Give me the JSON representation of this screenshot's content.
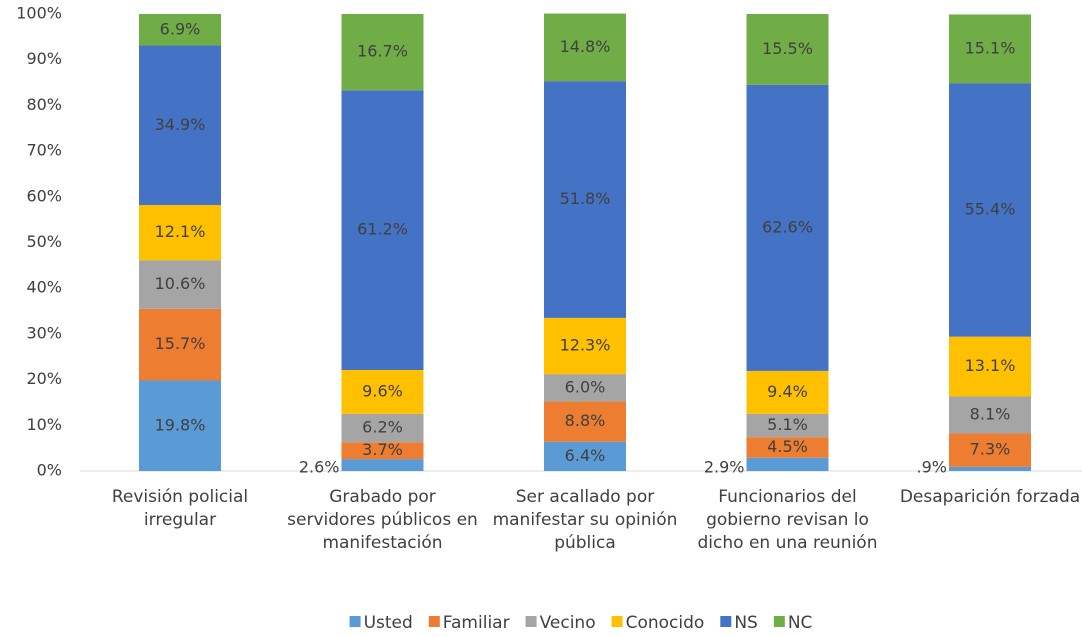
{
  "chart_data": {
    "type": "stacked_bar",
    "categories": [
      "Revisión policial irregular",
      "Grabado por servidores públicos en manifestación",
      "Ser acallado por manifestar su opinión pública",
      "Funcionarios del gobierno revisan lo dicho en una reunión",
      "Desaparición forzada"
    ],
    "series": [
      {
        "name": "Usted",
        "color": "#5b9bd5",
        "values": [
          19.8,
          2.6,
          6.4,
          2.9,
          0.9
        ],
        "value_labels": [
          "19.8%",
          "2.6%",
          "6.4%",
          "2.9%",
          ".9%"
        ]
      },
      {
        "name": "Familiar",
        "color": "#ed7d31",
        "values": [
          15.7,
          3.7,
          8.8,
          4.5,
          7.3
        ],
        "value_labels": [
          "15.7%",
          "3.7%",
          "8.8%",
          "4.5%",
          "7.3%"
        ]
      },
      {
        "name": "Vecino",
        "color": "#a5a5a5",
        "values": [
          10.6,
          6.2,
          6.0,
          5.1,
          8.1
        ],
        "value_labels": [
          "10.6%",
          "6.2%",
          "6.0%",
          "5.1%",
          "8.1%"
        ]
      },
      {
        "name": "Conocido",
        "color": "#ffc000",
        "values": [
          12.1,
          9.6,
          12.3,
          9.4,
          13.1
        ],
        "value_labels": [
          "12.1%",
          "9.6%",
          "12.3%",
          "9.4%",
          "13.1%"
        ]
      },
      {
        "name": "NS",
        "color": "#4472c4",
        "values": [
          34.9,
          61.2,
          51.8,
          62.6,
          55.4
        ],
        "value_labels": [
          "34.9%",
          "61.2%",
          "51.8%",
          "62.6%",
          "55.4%"
        ]
      },
      {
        "name": "NC",
        "color": "#70ad47",
        "values": [
          6.9,
          16.7,
          14.8,
          15.5,
          15.1
        ],
        "value_labels": [
          "6.9%",
          "16.7%",
          "14.8%",
          "15.5%",
          "15.1%"
        ]
      }
    ],
    "ylim": [
      0,
      100
    ],
    "yticks": [
      {
        "value": 0,
        "label": "0%"
      },
      {
        "value": 10,
        "label": "10%"
      },
      {
        "value": 20,
        "label": "20%"
      },
      {
        "value": 30,
        "label": "30%"
      },
      {
        "value": 40,
        "label": "40%"
      },
      {
        "value": 50,
        "label": "50%"
      },
      {
        "value": 60,
        "label": "60%"
      },
      {
        "value": 70,
        "label": "70%"
      },
      {
        "value": 80,
        "label": "80%"
      },
      {
        "value": 90,
        "label": "90%"
      },
      {
        "value": 100,
        "label": "100%"
      }
    ],
    "legend": "bottom"
  }
}
